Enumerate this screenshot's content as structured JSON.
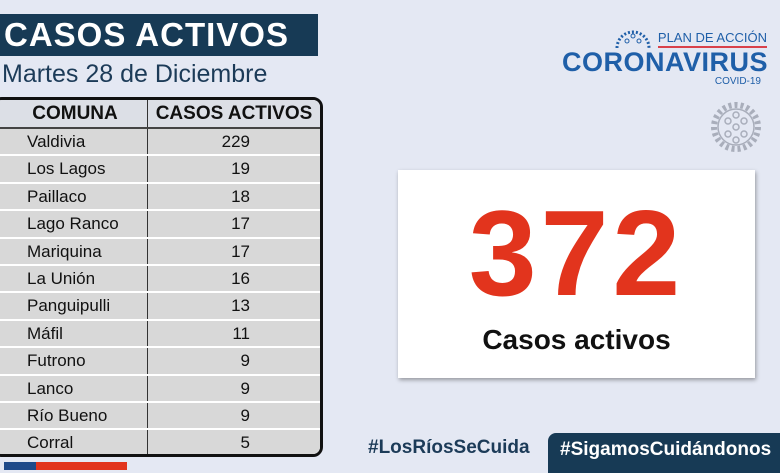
{
  "title": "CASOS ACTIVOS",
  "date": "Martes 28 de Diciembre",
  "table": {
    "headers": [
      "COMUNA",
      "CASOS ACTIVOS"
    ],
    "rows": [
      [
        "Valdivia",
        "229"
      ],
      [
        "Los Lagos",
        "19"
      ],
      [
        "Paillaco",
        "18"
      ],
      [
        "Lago Ranco",
        "17"
      ],
      [
        "Mariquina",
        "17"
      ],
      [
        "La Unión",
        "16"
      ],
      [
        "Panguipulli",
        "13"
      ],
      [
        "Máfil",
        "11"
      ],
      [
        "Futrono",
        "9"
      ],
      [
        "Lanco",
        "9"
      ],
      [
        "Río Bueno",
        "9"
      ],
      [
        "Corral",
        "5"
      ]
    ]
  },
  "total": {
    "value": "372",
    "label": "Casos activos"
  },
  "logo": {
    "plan": "PLAN DE ACCIÓN",
    "name": "CORONAVIRUS",
    "sub": "COVID-19"
  },
  "tags": [
    "#LosRíosSeCuida",
    "#SigamosCuidándonos"
  ],
  "colors": {
    "navy": "#173a55",
    "red": "#e2341d",
    "blue": "#1f5fa8"
  }
}
